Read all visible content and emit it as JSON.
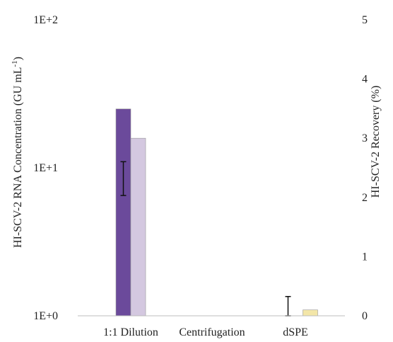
{
  "chart_data": {
    "type": "bar",
    "title": "",
    "categories": [
      "1:1 Dilution",
      "Centrifugation",
      "dSPE"
    ],
    "left_axis": {
      "label": "HI-SCV-2 RNA Concentration (GU mL",
      "label_sup": "-1",
      "label_end": ")",
      "scale": "log",
      "ylim": [
        1,
        100
      ],
      "ticks": [
        {
          "value": 1,
          "label": "1E+0"
        },
        {
          "value": 10,
          "label": "1E+1"
        },
        {
          "value": 100,
          "label": "1E+2"
        }
      ]
    },
    "right_axis": {
      "label": "HI-SCV-2 Recovery (%)",
      "scale": "linear",
      "ylim": [
        0,
        5
      ],
      "ticks": [
        {
          "value": 0,
          "label": "0"
        },
        {
          "value": 1,
          "label": "1"
        },
        {
          "value": 2,
          "label": "2"
        },
        {
          "value": 3,
          "label": "3"
        },
        {
          "value": 4,
          "label": "4"
        },
        {
          "value": 5,
          "label": "5"
        }
      ]
    },
    "series": [
      {
        "axis": "left",
        "color": "#6b4a9b",
        "values": [
          25,
          null,
          null
        ],
        "error": [
          [
            6.5,
            11
          ],
          null,
          [
            1,
            1.35
          ]
        ]
      },
      {
        "axis": "right",
        "color": "#d4c8e0",
        "values": [
          3.0,
          null,
          null
        ]
      },
      {
        "axis": "right",
        "color": "#f3e6a8",
        "values": [
          null,
          null,
          0.1
        ]
      }
    ],
    "grid": false,
    "legend": "none"
  }
}
